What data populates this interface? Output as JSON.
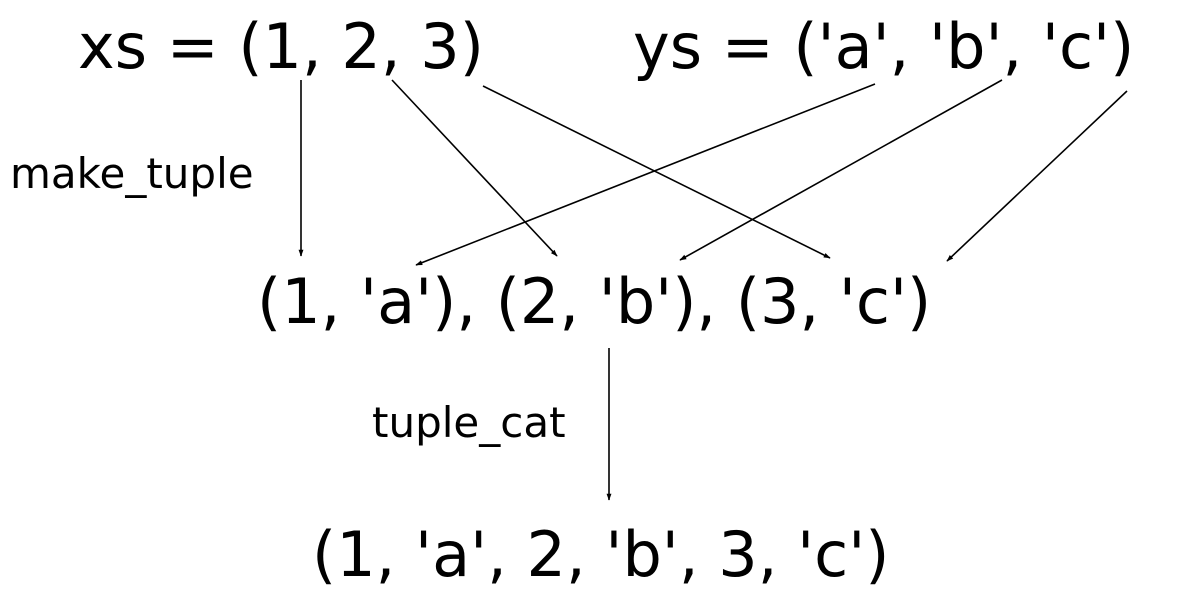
{
  "expressions": {
    "xs": "xs = (1, 2, 3)",
    "ys": "ys = ('a', 'b', 'c')",
    "pairs": "(1, 'a'), (2, 'b'), (3, 'c')",
    "result": "(1, 'a', 2, 'b', 3, 'c')"
  },
  "operations": {
    "make_tuple": "make_tuple",
    "tuple_cat": "tuple_cat"
  },
  "colors": {
    "ink": "#000000",
    "background": "#ffffff"
  }
}
